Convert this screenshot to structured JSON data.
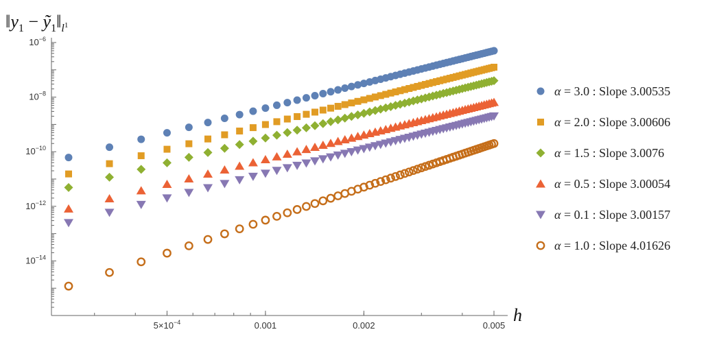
{
  "chart_data": {
    "type": "scatter",
    "title": "‖y₁ − ỹ₁‖ₗ¹",
    "xlabel": "h",
    "ylabel": "",
    "x_scale": "log",
    "y_scale": "log",
    "xlim": [
      0.00022,
      0.0052
    ],
    "ylim": [
      1e-16,
      1.5e-06
    ],
    "x_ticks": [
      {
        "value": 0.0005,
        "label": "5×10",
        "sup": "−4"
      },
      {
        "value": 0.001,
        "label": "0.001",
        "sup": ""
      },
      {
        "value": 0.002,
        "label": "0.002",
        "sup": ""
      },
      {
        "value": 0.005,
        "label": "0.005",
        "sup": ""
      }
    ],
    "y_ticks": [
      {
        "value": 1e-14,
        "label": "10",
        "sup": "−14"
      },
      {
        "value": 1e-12,
        "label": "10",
        "sup": "−12"
      },
      {
        "value": 1e-10,
        "label": "10",
        "sup": "−10"
      },
      {
        "value": 1e-08,
        "label": "10",
        "sup": "−8"
      },
      {
        "value": 1e-06,
        "label": "10",
        "sup": "−6"
      }
    ],
    "grid": false,
    "legend_position": "right",
    "h_values": [
      0.00025,
      0.0003333,
      0.0004167,
      0.0005,
      0.0005833,
      0.0006667,
      0.00075,
      0.0008333,
      0.0009167,
      0.001,
      0.0010833,
      0.0011667,
      0.00125,
      0.0013333,
      0.0014167,
      0.0015,
      0.0015833,
      0.0016667,
      0.00175,
      0.0018333,
      0.0019167,
      0.002,
      0.0020833,
      0.0021667,
      0.00225,
      0.0023333,
      0.0024167,
      0.0025,
      0.0025833,
      0.0026667,
      0.00275,
      0.0028333,
      0.0029167,
      0.003,
      0.0030833,
      0.0031667,
      0.00325,
      0.0033333,
      0.0034167,
      0.0035,
      0.0035833,
      0.0036667,
      0.00375,
      0.0038333,
      0.0039167,
      0.004,
      0.0040833,
      0.0041667,
      0.00425,
      0.0043333,
      0.0044167,
      0.0045,
      0.0045833,
      0.0046667,
      0.00475,
      0.0048333,
      0.0049167,
      0.005
    ],
    "series": [
      {
        "name": "α = 3.0 : Slope 3.00535",
        "alpha": "3.0",
        "slope": "3.00535",
        "marker": "circle",
        "color": "#5E81B5",
        "y_at_max_h": 5e-07,
        "order": 3.00535
      },
      {
        "name": "α = 2.0 : Slope 3.00606",
        "alpha": "2.0",
        "slope": "3.00606",
        "marker": "square",
        "color": "#E19C24",
        "y_at_max_h": 1.25e-07,
        "order": 3.00606
      },
      {
        "name": "α = 1.5 : Slope 3.0076",
        "alpha": "1.5",
        "slope": "3.0076",
        "marker": "diamond",
        "color": "#8FB032",
        "y_at_max_h": 4e-08,
        "order": 3.0076
      },
      {
        "name": "α = 0.5 : Slope 3.00054",
        "alpha": "0.5",
        "slope": "3.00054",
        "marker": "triangle-up",
        "color": "#EB6235",
        "y_at_max_h": 6.5e-09,
        "order": 3.00054
      },
      {
        "name": "α = 0.1 : Slope 3.00157",
        "alpha": "0.1",
        "slope": "3.00157",
        "marker": "triangle-down",
        "color": "#8778B3",
        "y_at_max_h": 2e-09,
        "order": 3.00157
      },
      {
        "name": "α = 1.0 : Slope 4.01626",
        "alpha": "1.0",
        "slope": "4.01626",
        "marker": "open-circle",
        "color": "#C56E1A",
        "y_at_max_h": 2e-10,
        "order": 4.01626
      }
    ]
  }
}
